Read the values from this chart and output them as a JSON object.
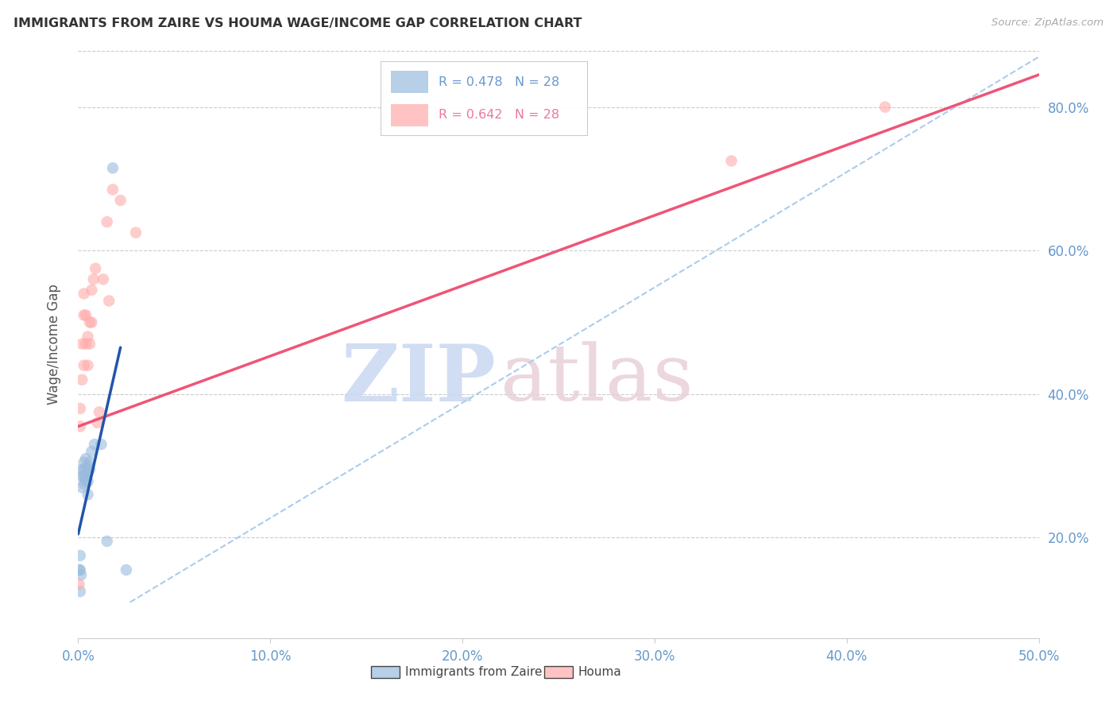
{
  "title": "IMMIGRANTS FROM ZAIRE VS HOUMA WAGE/INCOME GAP CORRELATION CHART",
  "source": "Source: ZipAtlas.com",
  "ylabel": "Wage/Income Gap",
  "legend_blue_label": "Immigrants from Zaire",
  "legend_pink_label": "Houma",
  "watermark_zip": "ZIP",
  "watermark_atlas": "atlas",
  "blue_dot_color": "#99BBDD",
  "pink_dot_color": "#FFAAAA",
  "blue_line_color": "#2255AA",
  "pink_line_color": "#EE5577",
  "dashed_line_color": "#AACCEE",
  "axis_label_color": "#6699CC",
  "title_color": "#333333",
  "ylabel_color": "#555555",
  "grid_color": "#CCCCCC",
  "x_min": 0.0,
  "x_max": 0.5,
  "y_min": 0.06,
  "y_max": 0.88,
  "yticks": [
    0.2,
    0.4,
    0.6,
    0.8
  ],
  "xticks": [
    0.0,
    0.1,
    0.2,
    0.3,
    0.4,
    0.5
  ],
  "blue_x": [
    0.0005,
    0.001,
    0.001,
    0.001,
    0.0015,
    0.002,
    0.002,
    0.002,
    0.003,
    0.003,
    0.003,
    0.003,
    0.0035,
    0.004,
    0.004,
    0.004,
    0.005,
    0.005,
    0.005,
    0.005,
    0.006,
    0.006,
    0.007,
    0.0085,
    0.012,
    0.015,
    0.018,
    0.025
  ],
  "blue_y": [
    0.155,
    0.125,
    0.155,
    0.175,
    0.148,
    0.27,
    0.285,
    0.295,
    0.275,
    0.285,
    0.295,
    0.305,
    0.285,
    0.28,
    0.295,
    0.31,
    0.26,
    0.278,
    0.29,
    0.3,
    0.295,
    0.305,
    0.32,
    0.33,
    0.33,
    0.195,
    0.715,
    0.155
  ],
  "pink_x": [
    0.0005,
    0.001,
    0.001,
    0.002,
    0.002,
    0.003,
    0.003,
    0.003,
    0.004,
    0.004,
    0.005,
    0.005,
    0.006,
    0.006,
    0.007,
    0.007,
    0.008,
    0.009,
    0.01,
    0.011,
    0.013,
    0.015,
    0.016,
    0.018,
    0.022,
    0.03,
    0.34,
    0.42
  ],
  "pink_y": [
    0.135,
    0.355,
    0.38,
    0.42,
    0.47,
    0.44,
    0.51,
    0.54,
    0.47,
    0.51,
    0.44,
    0.48,
    0.47,
    0.5,
    0.5,
    0.545,
    0.56,
    0.575,
    0.36,
    0.375,
    0.56,
    0.64,
    0.53,
    0.685,
    0.67,
    0.625,
    0.725,
    0.8
  ],
  "blue_line_x": [
    0.0,
    0.022
  ],
  "blue_line_y": [
    0.205,
    0.465
  ],
  "pink_line_x": [
    0.0,
    0.5
  ],
  "pink_line_y": [
    0.355,
    0.845
  ],
  "dashed_line_x": [
    0.027,
    0.5
  ],
  "dashed_line_y": [
    0.11,
    0.87
  ]
}
